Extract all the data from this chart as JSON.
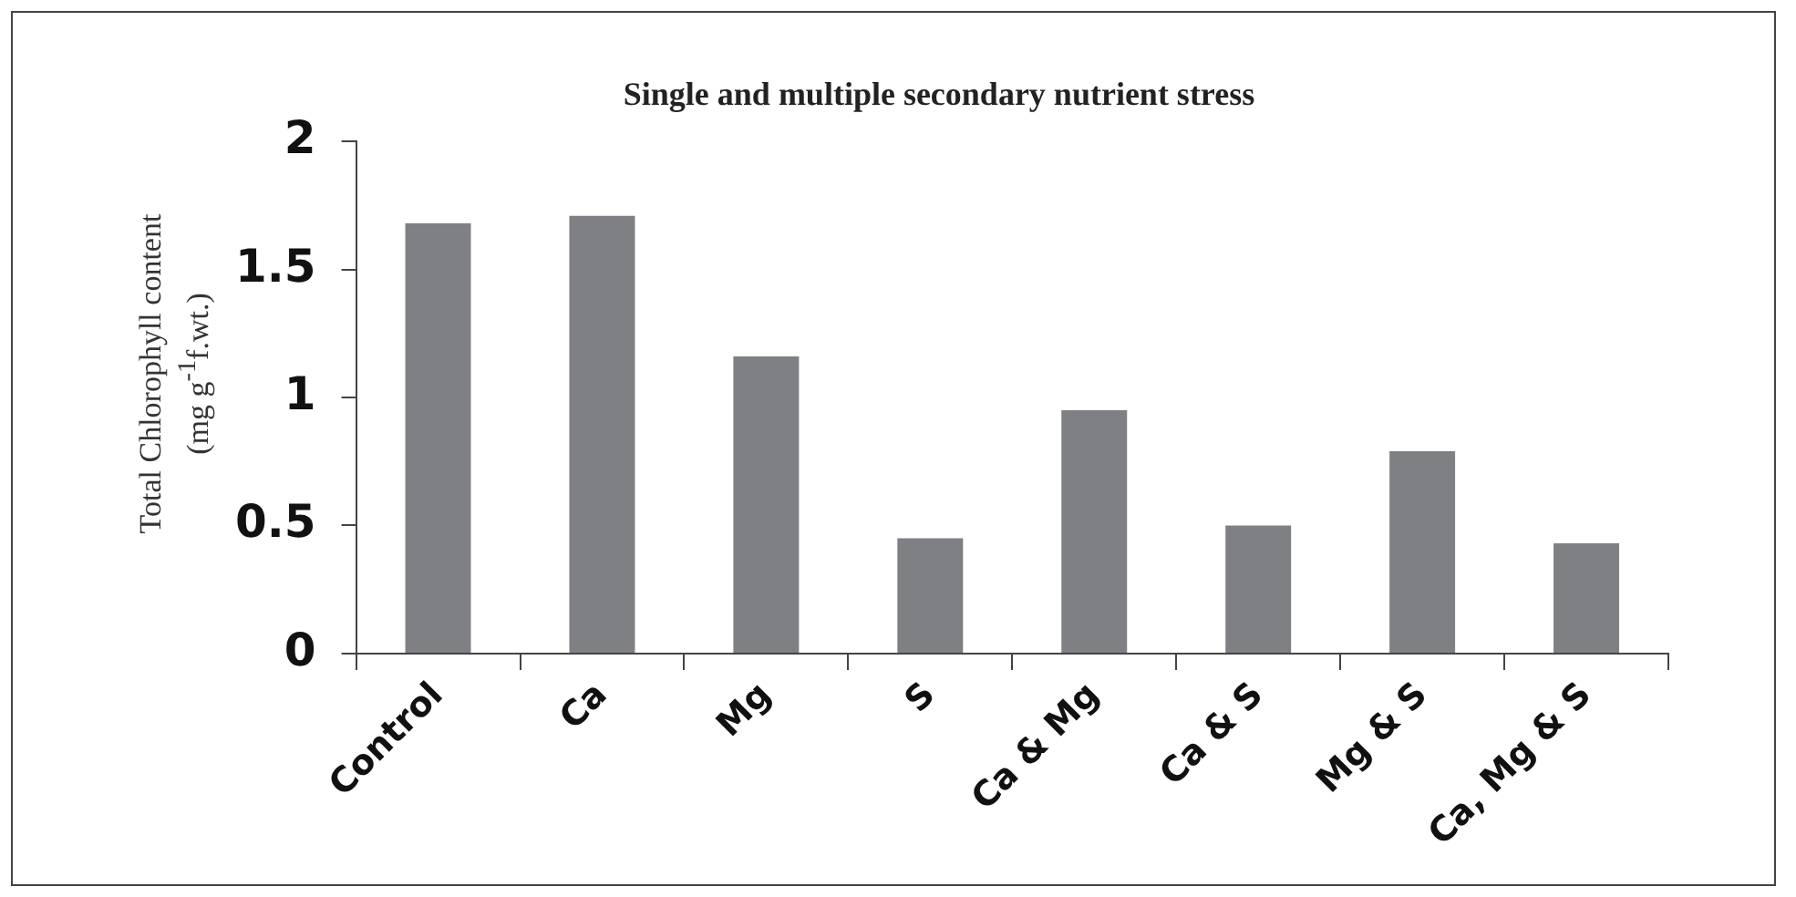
{
  "chart_data": {
    "type": "bar",
    "title": "Single and multiple secondary nutrient stress",
    "ylabel": "Total Chlorophyll content (mg g$^{-1}$f.wt.)",
    "categories": [
      "Control",
      "Ca",
      "Mg",
      "S",
      "Ca & Mg",
      "Ca & S",
      "Mg & S",
      "Ca, Mg & S"
    ],
    "values": [
      1.68,
      1.71,
      1.16,
      0.45,
      0.95,
      0.5,
      0.79,
      0.43
    ],
    "color": "#7f8084",
    "ylim": [
      0,
      2
    ],
    "yticks": [
      0,
      0.5,
      1,
      1.5,
      2
    ],
    "grid": false,
    "legend": false
  }
}
